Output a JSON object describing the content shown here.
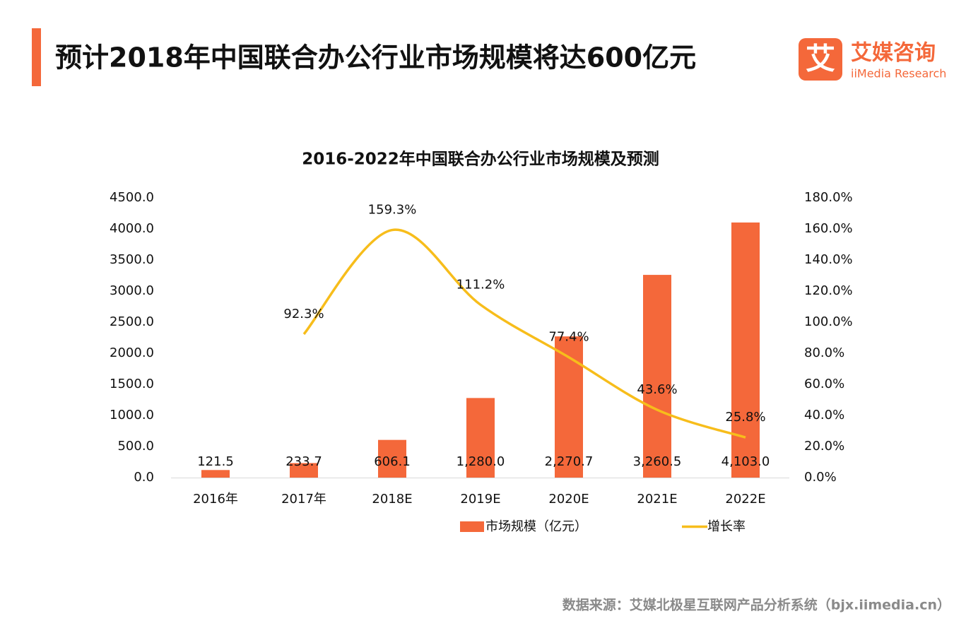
{
  "header": {
    "title": "预计2018年中国联合办公行业市场规模将达600亿元",
    "logo_mark": "艾",
    "logo_name": "艾媒咨询",
    "logo_sub": "iiMedia Research"
  },
  "chart_data": {
    "type": "combo",
    "title": "2016-2022年中国联合办公行业市场规模及预测",
    "categories": [
      "2016年",
      "2017年",
      "2018E",
      "2019E",
      "2020E",
      "2021E",
      "2022E"
    ],
    "series": [
      {
        "name": "市场规模（亿元）",
        "type": "bar",
        "color": "#f4683a",
        "values": [
          121.5,
          233.7,
          606.1,
          1280.0,
          2270.7,
          3260.5,
          4103.0
        ],
        "value_labels": [
          "121.5",
          "233.7",
          "606.1",
          "1,280.0",
          "2,270.7",
          "3,260.5",
          "4,103.0"
        ]
      },
      {
        "name": "增长率",
        "type": "line",
        "axis": "y2",
        "color": "#f7bd1b",
        "values": [
          null,
          92.3,
          159.3,
          111.2,
          77.4,
          43.6,
          25.8
        ],
        "value_labels": [
          null,
          "92.3%",
          "159.3%",
          "111.2%",
          "77.4%",
          "43.6%",
          "25.8%"
        ]
      }
    ],
    "ylim": [
      0,
      4500
    ],
    "yticks": [
      {
        "value": 0,
        "label": "0.0"
      },
      {
        "value": 500,
        "label": "500.0"
      },
      {
        "value": 1000,
        "label": "1000.0"
      },
      {
        "value": 1500,
        "label": "1500.0"
      },
      {
        "value": 2000,
        "label": "2000.0"
      },
      {
        "value": 2500,
        "label": "2500.0"
      },
      {
        "value": 3000,
        "label": "3000.0"
      },
      {
        "value": 3500,
        "label": "3500.0"
      },
      {
        "value": 4000,
        "label": "4000.0"
      },
      {
        "value": 4500,
        "label": "4500.0"
      }
    ],
    "y2lim": [
      0,
      180
    ],
    "y2ticks": [
      {
        "value": 0,
        "label": "0.0%"
      },
      {
        "value": 20,
        "label": "20.0%"
      },
      {
        "value": 40,
        "label": "40.0%"
      },
      {
        "value": 60,
        "label": "60.0%"
      },
      {
        "value": 80,
        "label": "80.0%"
      },
      {
        "value": 100,
        "label": "100.0%"
      },
      {
        "value": 120,
        "label": "120.0%"
      },
      {
        "value": 140,
        "label": "140.0%"
      },
      {
        "value": 160,
        "label": "160.0%"
      },
      {
        "value": 180,
        "label": "180.0%"
      }
    ],
    "grid": false
  },
  "footer": {
    "source": "数据来源：艾媒北极星互联网产品分析系统（bjx.iimedia.cn）"
  }
}
